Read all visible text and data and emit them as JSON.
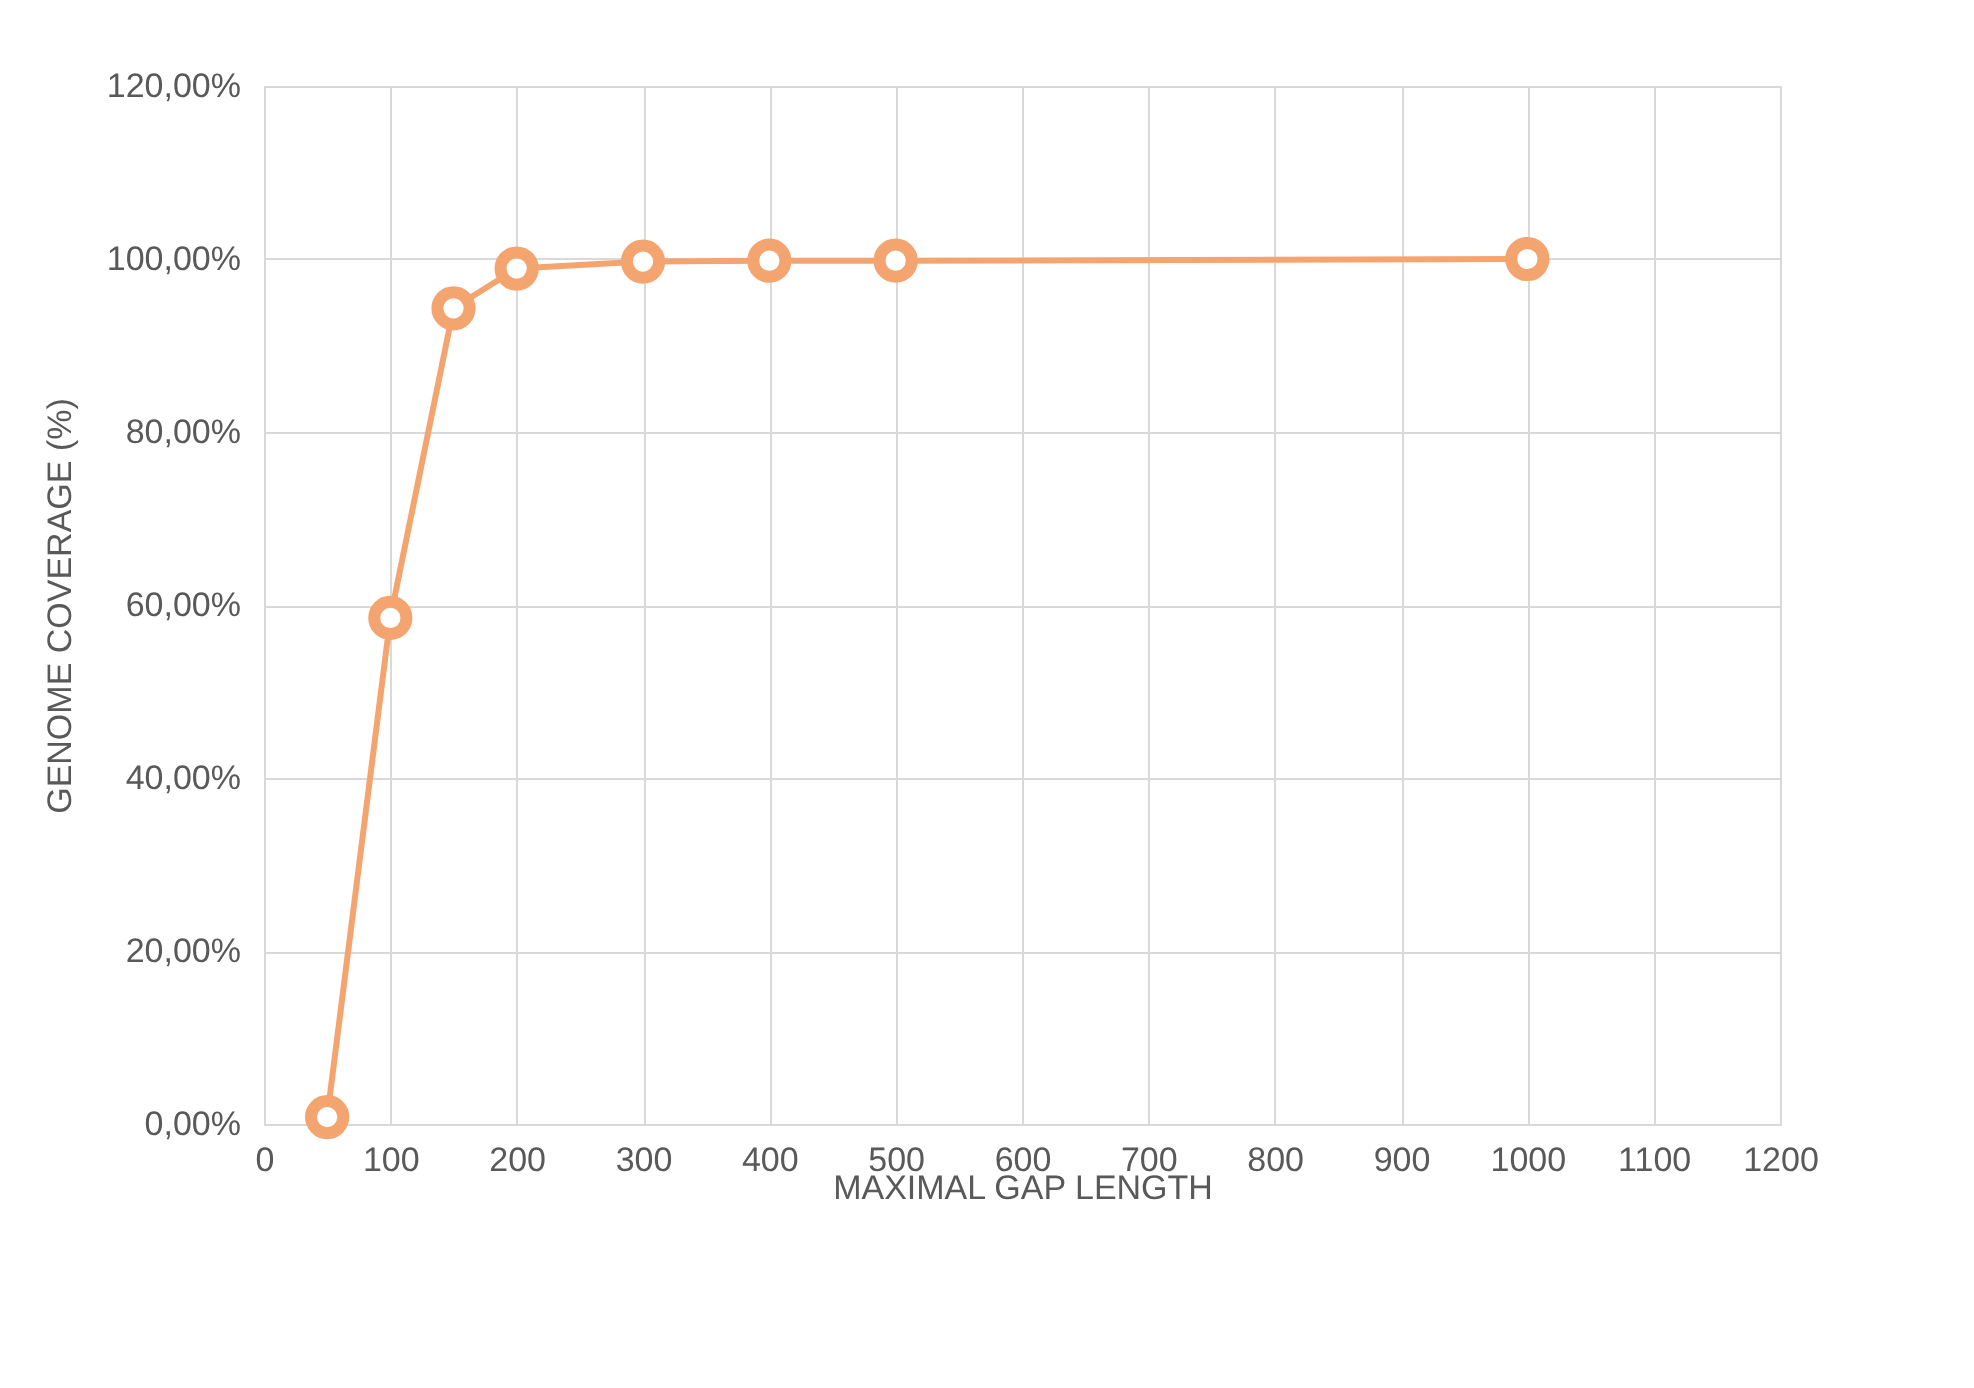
{
  "chart_data": {
    "type": "line",
    "xlabel": "MAXIMAL GAP LENGTH",
    "ylabel": "GENOME COVERAGE (%)",
    "x": [
      50,
      100,
      150,
      200,
      300,
      400,
      500,
      1000
    ],
    "series": [
      {
        "color": "#f4a56f",
        "values": [
          0.8,
          58.5,
          94.3,
          98.9,
          99.7,
          99.8,
          99.8,
          100
        ]
      }
    ],
    "xlim": [
      0,
      1200
    ],
    "xticks": [
      0,
      100,
      200,
      300,
      400,
      500,
      600,
      700,
      800,
      900,
      1000,
      1100,
      1200
    ],
    "ylim": [
      0,
      120
    ],
    "yticks": [
      {
        "value": 0,
        "label": "0,00%"
      },
      {
        "value": 20,
        "label": "20,00%"
      },
      {
        "value": 40,
        "label": "40,00%"
      },
      {
        "value": 60,
        "label": "60,00%"
      },
      {
        "value": 80,
        "label": "80,00%"
      },
      {
        "value": 100,
        "label": "100,00%"
      },
      {
        "value": 120,
        "label": "120,00%"
      }
    ],
    "grid": true,
    "marker": "circle"
  }
}
